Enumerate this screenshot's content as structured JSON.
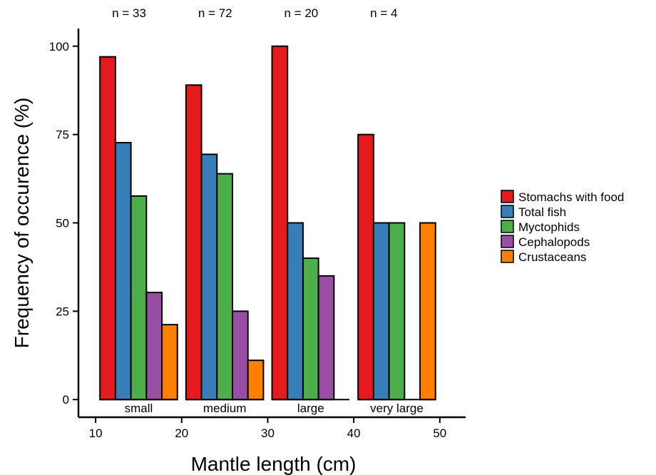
{
  "chart_data": {
    "type": "bar",
    "title": "",
    "xlabel": "Mantle length (cm)",
    "ylabel": "Frequency of occurence (%)",
    "xlim": [
      8,
      53
    ],
    "ylim": [
      -5,
      105
    ],
    "xticks": [
      10,
      20,
      30,
      40,
      50
    ],
    "yticks": [
      0,
      25,
      50,
      75,
      100
    ],
    "grid": false,
    "legend_position": "right",
    "groups": [
      {
        "label": "small",
        "x_range": [
          10.5,
          19.5
        ],
        "n_label": "n = 33"
      },
      {
        "label": "medium",
        "x_range": [
          20.5,
          29.5
        ],
        "n_label": "n = 72"
      },
      {
        "label": "large",
        "x_range": [
          30.5,
          39.5
        ],
        "n_label": "n = 20"
      },
      {
        "label": "very large",
        "x_range": [
          40.5,
          49.5
        ],
        "n_label": "n = 4"
      }
    ],
    "series": [
      {
        "name": "Stomachs with food",
        "color": "#e41a1c",
        "values": [
          97,
          89,
          100,
          75
        ]
      },
      {
        "name": "Total fish",
        "color": "#377eb8",
        "values": [
          72.7,
          69.4,
          50,
          50
        ]
      },
      {
        "name": "Myctophids",
        "color": "#4daf4a",
        "values": [
          57.6,
          63.9,
          40,
          50
        ]
      },
      {
        "name": "Cephalopods",
        "color": "#984ea3",
        "values": [
          30.3,
          25,
          35,
          0
        ]
      },
      {
        "name": "Crustaceans",
        "color": "#ff7f00",
        "values": [
          21.2,
          11.1,
          0,
          50
        ]
      }
    ]
  }
}
